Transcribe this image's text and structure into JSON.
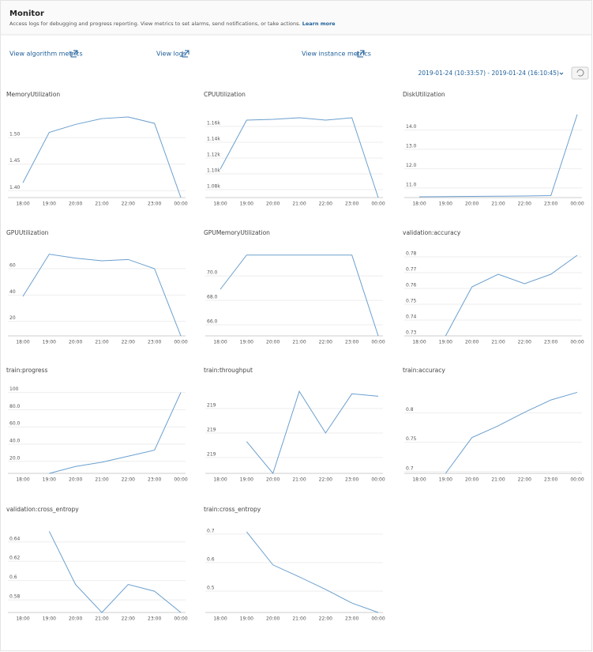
{
  "header": {
    "title": "Monitor",
    "description": "Access logs for debugging and progress reporting. View metrics to set alarms, send notifications, or take actions.",
    "learn_more": "Learn more"
  },
  "links": [
    "View algorithm metrics",
    "View logs",
    "View instance metrics"
  ],
  "date_range": "2019-01-24 (10:33:57) - 2019-01-24 (16:10:45)",
  "chart_data": [
    {
      "type": "line",
      "title": "MemoryUtilization",
      "categories": [
        "18:00",
        "19:00",
        "20:00",
        "21:00",
        "22:00",
        "23:00",
        "00:00"
      ],
      "values": [
        1.415,
        1.51,
        1.525,
        1.536,
        1.539,
        1.527,
        1.387
      ],
      "color": "#6a9fce",
      "ylim": [
        1.387,
        1.551
      ],
      "yticks": [
        {
          "value": 1.4,
          "label": "1.40"
        },
        {
          "value": 1.45,
          "label": "1.45"
        },
        {
          "value": 1.5,
          "label": "1.50"
        }
      ],
      "grid": true
    },
    {
      "type": "line",
      "title": "CPUUtilization",
      "categories": [
        "18:00",
        "19:00",
        "20:00",
        "21:00",
        "22:00",
        "23:00",
        "00:00"
      ],
      "values": [
        1106,
        1168,
        1169,
        1171,
        1168,
        1171,
        1070
      ],
      "color": "#6a9fce",
      "ylim": [
        1070,
        1180
      ],
      "yticks": [
        {
          "value": 1080,
          "label": "1.08k"
        },
        {
          "value": 1100,
          "label": "1.10k"
        },
        {
          "value": 1120,
          "label": "1.12k"
        },
        {
          "value": 1140,
          "label": "1.14k"
        },
        {
          "value": 1160,
          "label": "1.16k"
        }
      ],
      "grid": true
    },
    {
      "type": "line",
      "title": "DiskUtilization",
      "categories": [
        "18:00",
        "19:00",
        "20:00",
        "21:00",
        "22:00",
        "23:00",
        "00:00"
      ],
      "values": [
        10.54,
        10.55,
        10.56,
        10.57,
        10.58,
        10.6,
        14.8
      ],
      "color": "#6a9fce",
      "ylim": [
        10.5,
        15
      ],
      "yticks": [
        {
          "value": 11,
          "label": "11.0"
        },
        {
          "value": 12,
          "label": "12.0"
        },
        {
          "value": 13,
          "label": "13.0"
        },
        {
          "value": 14,
          "label": "14.0"
        }
      ],
      "grid": true
    },
    {
      "type": "line",
      "title": "GPUUtilization",
      "categories": [
        "18:00",
        "19:00",
        "20:00",
        "21:00",
        "22:00",
        "23:00",
        "00:00"
      ],
      "values": [
        39,
        71,
        68,
        66,
        67,
        60,
        9
      ],
      "color": "#6a9fce",
      "ylim": [
        9,
        75
      ],
      "yticks": [
        20,
        40,
        60
      ],
      "grid": true
    },
    {
      "type": "line",
      "title": "GPUMemoryUtilization",
      "categories": [
        "18:00",
        "19:00",
        "20:00",
        "21:00",
        "22:00",
        "23:00",
        "00:00"
      ],
      "values": [
        68.9,
        71.7,
        71.7,
        71.7,
        71.7,
        71.7,
        65.1
      ],
      "color": "#6a9fce",
      "ylim": [
        65.1,
        72.2
      ],
      "yticks": [
        {
          "value": 66,
          "label": "66.0"
        },
        {
          "value": 68,
          "label": "68.0"
        },
        {
          "value": 70,
          "label": "70.0"
        }
      ],
      "grid": true
    },
    {
      "type": "line",
      "title": "validation:accuracy",
      "categories": [
        "18:00",
        "19:00",
        "20:00",
        "21:00",
        "22:00",
        "23:00",
        "00:00"
      ],
      "values": [
        null,
        0.73,
        0.761,
        0.769,
        0.763,
        0.769,
        0.781
      ],
      "color": "#6a9fce",
      "ylim": [
        0.73,
        0.785
      ],
      "yticks": [
        0.73,
        0.74,
        0.75,
        0.76,
        0.77,
        0.78
      ],
      "grid": true
    },
    {
      "type": "line",
      "title": "train:progress",
      "categories": [
        "18:00",
        "19:00",
        "20:00",
        "21:00",
        "22:00",
        "23:00",
        "00:00"
      ],
      "values": [
        null,
        6,
        14,
        19,
        26,
        33,
        100
      ],
      "color": "#6a9fce",
      "ylim": [
        6,
        107
      ],
      "yticks": [
        {
          "value": 20,
          "label": "20.0"
        },
        {
          "value": 40,
          "label": "40.0"
        },
        {
          "value": 60,
          "label": "60.0"
        },
        {
          "value": 80,
          "label": "80.0"
        },
        100
      ],
      "grid": true
    },
    {
      "type": "line",
      "title": "train:throughput",
      "categories": [
        "18:00",
        "19:00",
        "20:00",
        "21:00",
        "22:00",
        "23:00",
        "00:00"
      ],
      "values": [
        null,
        219.065,
        218.935,
        219.27,
        219.1,
        219.26,
        219.25
      ],
      "color": "#6a9fce",
      "ylim": [
        218.935,
        219.29
      ],
      "yticks": [
        {
          "value": 219.0,
          "label": "219"
        },
        {
          "value": 219.1,
          "label": "219"
        },
        {
          "value": 219.2,
          "label": "219"
        }
      ],
      "grid": true
    },
    {
      "type": "line",
      "title": "train:accuracy",
      "categories": [
        "18:00",
        "19:00",
        "20:00",
        "21:00",
        "22:00",
        "23:00",
        "00:00"
      ],
      "values": [
        null,
        0.697,
        0.758,
        0.778,
        0.801,
        0.822,
        0.835
      ],
      "color": "#6a9fce",
      "ylim": [
        0.697,
        0.845
      ],
      "yticks": [
        0.7,
        0.75,
        0.8
      ],
      "grid": true
    },
    {
      "type": "line",
      "title": "validation:cross_entropy",
      "categories": [
        "18:00",
        "19:00",
        "20:00",
        "21:00",
        "22:00",
        "23:00",
        "00:00"
      ],
      "values": [
        null,
        0.651,
        0.596,
        0.567,
        0.596,
        0.589,
        0.567
      ],
      "color": "#6a9fce",
      "ylim": [
        0.567,
        0.657
      ],
      "yticks": [
        0.58,
        0.6,
        0.62,
        0.64
      ],
      "grid": true
    },
    {
      "type": "line",
      "title": "train:cross_entropy",
      "categories": [
        "18:00",
        "19:00",
        "20:00",
        "21:00",
        "22:00",
        "23:00",
        "00:00"
      ],
      "values": [
        null,
        0.708,
        0.592,
        0.55,
        0.506,
        0.458,
        0.425
      ],
      "color": "#6a9fce",
      "ylim": [
        0.425,
        0.73
      ],
      "yticks": [
        0.5,
        0.6,
        0.7
      ],
      "grid": true
    }
  ]
}
